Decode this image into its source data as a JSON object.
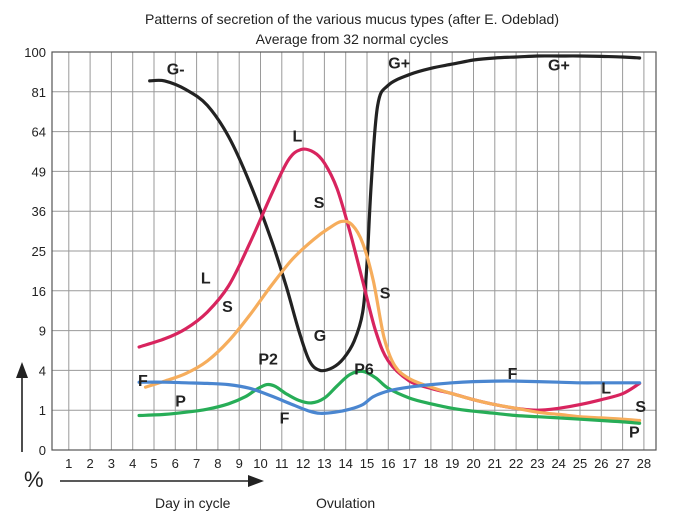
{
  "chart_data": {
    "type": "line",
    "title": "Patterns of secretion of the various mucus types (after E. Odeblad)",
    "subtitle": "Average from 32 normal cycles",
    "y_ticks": [
      "100",
      "81",
      "64",
      "49",
      "36",
      "25",
      "16",
      "9",
      "4",
      "1",
      "0"
    ],
    "x_ticks": [
      "1",
      "2",
      "3",
      "4",
      "5",
      "6",
      "7",
      "8",
      "9",
      "10",
      "11",
      "12",
      "13",
      "14",
      "15",
      "16",
      "17",
      "18",
      "19",
      "20",
      "21",
      "22",
      "23",
      "24",
      "25",
      "26",
      "27",
      "28"
    ],
    "ylabel": "%",
    "xlabel": "Day in cycle",
    "annotation": "Ovulation",
    "ylim": [
      0,
      100
    ],
    "xlim": [
      0,
      28.5
    ],
    "grid": true,
    "series": [
      {
        "color": "#222222",
        "points": [
          [
            4.8,
            86
          ],
          [
            5.5,
            86
          ],
          [
            6.5,
            82
          ],
          [
            7.5,
            75
          ],
          [
            8.5,
            62
          ],
          [
            9.5,
            45
          ],
          [
            10.5,
            28
          ],
          [
            11.2,
            17
          ],
          [
            11.8,
            9
          ],
          [
            12.3,
            5
          ],
          [
            12.8,
            4
          ],
          [
            13.4,
            4.3
          ],
          [
            13.9,
            5.3
          ],
          [
            14.4,
            7.5
          ],
          [
            14.8,
            12
          ],
          [
            15.0,
            22
          ],
          [
            15.2,
            45
          ],
          [
            15.5,
            75
          ],
          [
            16.0,
            84
          ],
          [
            17,
            89
          ],
          [
            18,
            92
          ],
          [
            19,
            94
          ],
          [
            20,
            96
          ],
          [
            21,
            97
          ],
          [
            22,
            97.5
          ],
          [
            23,
            98
          ],
          [
            24,
            98
          ],
          [
            25,
            98
          ],
          [
            26,
            97.8
          ],
          [
            27,
            97.5
          ],
          [
            27.8,
            97
          ]
        ],
        "labels": [
          {
            "text": "G-",
            "x": 5.6,
            "y": 89
          },
          {
            "text": "G+",
            "x": 16.0,
            "y": 92
          },
          {
            "text": "G+",
            "x": 23.5,
            "y": 91
          },
          {
            "text": "G",
            "x": 12.5,
            "y": 7.5
          }
        ]
      },
      {
        "color": "#d8245e",
        "points": [
          [
            4.3,
            6.7
          ],
          [
            5.5,
            7.8
          ],
          [
            6.5,
            9.3
          ],
          [
            7.5,
            12
          ],
          [
            8.5,
            17
          ],
          [
            9.5,
            27
          ],
          [
            10.5,
            41
          ],
          [
            11.3,
            53
          ],
          [
            11.9,
            57
          ],
          [
            12.5,
            56
          ],
          [
            13.0,
            52
          ],
          [
            13.6,
            43
          ],
          [
            14.2,
            30
          ],
          [
            14.8,
            18
          ],
          [
            15.4,
            9
          ],
          [
            16,
            5
          ],
          [
            17,
            3
          ],
          [
            18,
            2.4
          ],
          [
            19,
            2
          ],
          [
            20,
            1.6
          ],
          [
            21,
            1.3
          ],
          [
            22,
            1.1
          ],
          [
            23,
            1
          ],
          [
            24,
            1.1
          ],
          [
            25,
            1.3
          ],
          [
            26,
            1.6
          ],
          [
            27,
            2
          ],
          [
            27.8,
            2.8
          ]
        ],
        "labels": [
          {
            "text": "L",
            "x": 7.2,
            "y": 17.5
          },
          {
            "text": "L",
            "x": 11.5,
            "y": 60
          },
          {
            "text": "L",
            "x": 26.0,
            "y": 2.0
          }
        ]
      },
      {
        "color": "#f6ad5c",
        "points": [
          [
            4.6,
            2.5
          ],
          [
            5.5,
            3
          ],
          [
            6.5,
            3.7
          ],
          [
            7.5,
            5
          ],
          [
            8.5,
            7.5
          ],
          [
            9.5,
            11.5
          ],
          [
            10.5,
            17
          ],
          [
            11.5,
            23
          ],
          [
            12.5,
            28
          ],
          [
            13.2,
            31
          ],
          [
            13.8,
            33
          ],
          [
            14.3,
            32
          ],
          [
            14.8,
            27
          ],
          [
            15.3,
            18
          ],
          [
            15.8,
            8
          ],
          [
            16.3,
            4.5
          ],
          [
            17,
            3.2
          ],
          [
            18,
            2.5
          ],
          [
            19,
            2
          ],
          [
            20,
            1.6
          ],
          [
            21,
            1.3
          ],
          [
            22,
            1.1
          ],
          [
            23,
            0.9
          ],
          [
            24,
            0.8
          ],
          [
            25,
            0.7
          ],
          [
            26,
            0.65
          ],
          [
            27,
            0.6
          ],
          [
            27.8,
            0.55
          ]
        ],
        "labels": [
          {
            "text": "S",
            "x": 8.2,
            "y": 12
          },
          {
            "text": "S",
            "x": 12.5,
            "y": 37
          },
          {
            "text": "S",
            "x": 15.6,
            "y": 14.5
          },
          {
            "text": "S",
            "x": 27.6,
            "y": 0.9
          }
        ]
      },
      {
        "color": "#27ad57",
        "points": [
          [
            4.3,
            0.75
          ],
          [
            5.5,
            0.8
          ],
          [
            6.5,
            0.9
          ],
          [
            7.5,
            1.05
          ],
          [
            8.5,
            1.35
          ],
          [
            9.3,
            1.8
          ],
          [
            9.8,
            2.3
          ],
          [
            10.3,
            2.7
          ],
          [
            10.7,
            2.55
          ],
          [
            11.2,
            2.0
          ],
          [
            11.8,
            1.55
          ],
          [
            12.4,
            1.4
          ],
          [
            13.0,
            1.7
          ],
          [
            13.6,
            2.6
          ],
          [
            14.2,
            3.6
          ],
          [
            14.8,
            3.9
          ],
          [
            15.4,
            3.3
          ],
          [
            16,
            2.4
          ],
          [
            17,
            1.7
          ],
          [
            18,
            1.35
          ],
          [
            19,
            1.1
          ],
          [
            20,
            0.95
          ],
          [
            21,
            0.85
          ],
          [
            22,
            0.75
          ],
          [
            23,
            0.7
          ],
          [
            24,
            0.65
          ],
          [
            25,
            0.6
          ],
          [
            26,
            0.55
          ],
          [
            27,
            0.5
          ],
          [
            27.8,
            0.45
          ]
        ],
        "labels": [
          {
            "text": "P",
            "x": 6.0,
            "y": 1.2
          },
          {
            "text": "P2",
            "x": 9.9,
            "y": 4.6
          },
          {
            "text": "P6",
            "x": 14.4,
            "y": 3.6
          },
          {
            "text": "P",
            "x": 27.3,
            "y": 0.1
          }
        ]
      },
      {
        "color": "#4a86d0",
        "points": [
          [
            4.3,
            2.9
          ],
          [
            5.5,
            2.9
          ],
          [
            6.5,
            2.85
          ],
          [
            7.5,
            2.8
          ],
          [
            8.5,
            2.7
          ],
          [
            9.5,
            2.4
          ],
          [
            10.5,
            1.85
          ],
          [
            11.5,
            1.3
          ],
          [
            12.3,
            0.95
          ],
          [
            12.8,
            0.85
          ],
          [
            13.5,
            0.9
          ],
          [
            14.2,
            1.05
          ],
          [
            14.8,
            1.3
          ],
          [
            15.3,
            1.8
          ],
          [
            16,
            2.2
          ],
          [
            17,
            2.5
          ],
          [
            18,
            2.7
          ],
          [
            19,
            2.85
          ],
          [
            20,
            2.95
          ],
          [
            21,
            3.0
          ],
          [
            22,
            3.0
          ],
          [
            23,
            2.95
          ],
          [
            24,
            2.9
          ],
          [
            25,
            2.85
          ],
          [
            26,
            2.85
          ],
          [
            27,
            2.85
          ],
          [
            27.8,
            2.85
          ]
        ],
        "labels": [
          {
            "text": "F",
            "x": 4.25,
            "y": 2.6
          },
          {
            "text": "F",
            "x": 10.9,
            "y": 0.45
          },
          {
            "text": "F",
            "x": 21.6,
            "y": 3.2
          }
        ]
      }
    ]
  }
}
